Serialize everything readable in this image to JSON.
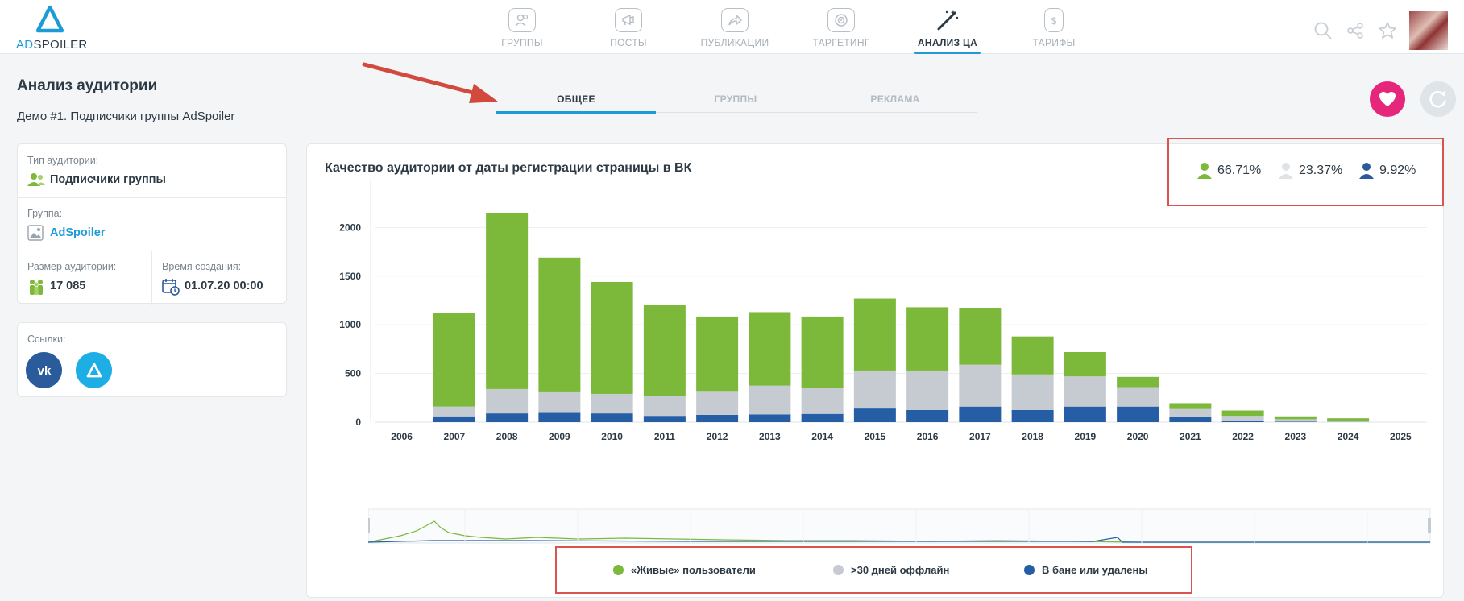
{
  "brand": {
    "ad": "AD",
    "rest": "SPOILER",
    "color": "#1d9bd7"
  },
  "nav": [
    {
      "label": "ГРУППЫ",
      "icon": "groups-icon"
    },
    {
      "label": "ПОСТЫ",
      "icon": "megaphone-icon"
    },
    {
      "label": "ПУБЛИКАЦИИ",
      "icon": "share-arrow-icon"
    },
    {
      "label": "ТАРГЕТИНГ",
      "icon": "target-icon"
    },
    {
      "label": "АНАЛИЗ ЦА",
      "icon": "magic-wand-icon",
      "active": true
    },
    {
      "label": "ТАРИФЫ",
      "icon": "price-tag-icon"
    }
  ],
  "page": {
    "title": "Анализ аудитории",
    "subtitle": "Демо #1. Подписчики группы AdSpoiler"
  },
  "tabs": [
    {
      "label": "ОБЩЕЕ",
      "active": true
    },
    {
      "label": "ГРУППЫ"
    },
    {
      "label": "РЕКЛАМА"
    }
  ],
  "info": {
    "audience_type_label": "Тип аудитории:",
    "audience_type_value": "Подписчики группы",
    "group_label": "Группа:",
    "group_value": "AdSpoiler",
    "size_label": "Размер аудитории:",
    "size_value": "17 085",
    "created_label": "Время создания:",
    "created_value": "01.07.20 00:00"
  },
  "links": {
    "label": "Ссылки:"
  },
  "chart_card": {
    "title": "Качество аудитории от даты регистрации страницы в ВК",
    "stats": [
      {
        "value": "66.71%",
        "color": "#7cb93a"
      },
      {
        "value": "23.37%",
        "color": "#dfe3e6"
      },
      {
        "value": "9.92%",
        "color": "#2b5a9a"
      }
    ]
  },
  "legend": [
    {
      "label": "«Живые» пользователи",
      "color": "#7cb93a"
    },
    {
      "label": ">30 дней оффлайн",
      "color": "#c6cbd1"
    },
    {
      "label": "В бане или удалены",
      "color": "#265ea6"
    }
  ],
  "chart_data": {
    "type": "bar",
    "stacked": true,
    "title": "Качество аудитории от даты регистрации страницы в ВК",
    "categories": [
      "2006",
      "2007",
      "2008",
      "2009",
      "2010",
      "2011",
      "2012",
      "2013",
      "2014",
      "2015",
      "2016",
      "2017",
      "2018",
      "2019",
      "2020",
      "2021",
      "2022",
      "2023",
      "2024",
      "2025"
    ],
    "series": [
      {
        "name": "В бане или удалены",
        "color": "#265ea6",
        "values": [
          0,
          60,
          90,
          95,
          90,
          65,
          75,
          80,
          85,
          140,
          125,
          160,
          125,
          160,
          160,
          50,
          15,
          5,
          2,
          0
        ]
      },
      {
        "name": ">30 дней оффлайн",
        "color": "#c6cbd1",
        "values": [
          0,
          100,
          250,
          220,
          200,
          200,
          245,
          295,
          270,
          390,
          405,
          430,
          365,
          310,
          200,
          85,
          50,
          25,
          8,
          0
        ]
      },
      {
        "name": "«Живые» пользователи",
        "color": "#7cb93a",
        "values": [
          0,
          965,
          1805,
          1375,
          1150,
          935,
          765,
          755,
          730,
          740,
          650,
          585,
          390,
          250,
          105,
          60,
          55,
          30,
          30,
          0
        ]
      }
    ],
    "yticks": [
      0,
      500,
      1000,
      1500,
      2000
    ],
    "ylim": [
      0,
      2400
    ],
    "grid": true
  }
}
